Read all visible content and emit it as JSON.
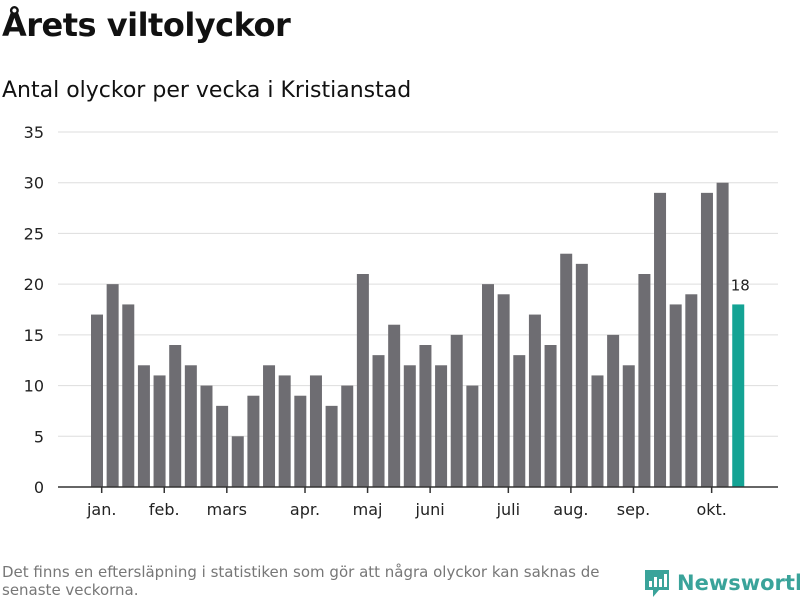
{
  "header": {
    "title": "Årets viltolyckor",
    "subtitle": "Antal olyckor per vecka i Kristianstad"
  },
  "footer": {
    "note": "Det finns en eftersläpning i statistiken som gör att några olyckor kan saknas de senaste veckorna.",
    "brand": "Newsworthy"
  },
  "colors": {
    "bar": "#6e6d72",
    "highlight": "#14a394",
    "grid": "#dddddd",
    "axis": "#333333",
    "brand": "#3aa39a"
  },
  "chart_data": {
    "type": "bar",
    "title": "Antal olyckor per vecka i Kristianstad",
    "xlabel": "",
    "ylabel": "",
    "ylim": [
      0,
      35
    ],
    "yticks": [
      0,
      5,
      10,
      15,
      20,
      25,
      30,
      35
    ],
    "grid": true,
    "values": [
      17,
      20,
      18,
      12,
      11,
      14,
      12,
      10,
      8,
      5,
      9,
      12,
      11,
      9,
      11,
      8,
      10,
      21,
      13,
      16,
      12,
      14,
      12,
      15,
      10,
      20,
      19,
      13,
      17,
      14,
      23,
      22,
      11,
      15,
      12,
      21,
      29,
      18,
      19,
      29,
      30,
      18
    ],
    "highlight_index": 41,
    "highlight_label": "18",
    "month_labels": [
      {
        "label": "jan.",
        "week_index": 0.3
      },
      {
        "label": "feb.",
        "week_index": 4.3
      },
      {
        "label": "mars",
        "week_index": 8.3
      },
      {
        "label": "apr.",
        "week_index": 13.3
      },
      {
        "label": "maj",
        "week_index": 17.3
      },
      {
        "label": "juni",
        "week_index": 21.3
      },
      {
        "label": "juli",
        "week_index": 26.3
      },
      {
        "label": "aug.",
        "week_index": 30.3
      },
      {
        "label": "sep.",
        "week_index": 34.3
      },
      {
        "label": "okt.",
        "week_index": 39.3
      }
    ]
  }
}
